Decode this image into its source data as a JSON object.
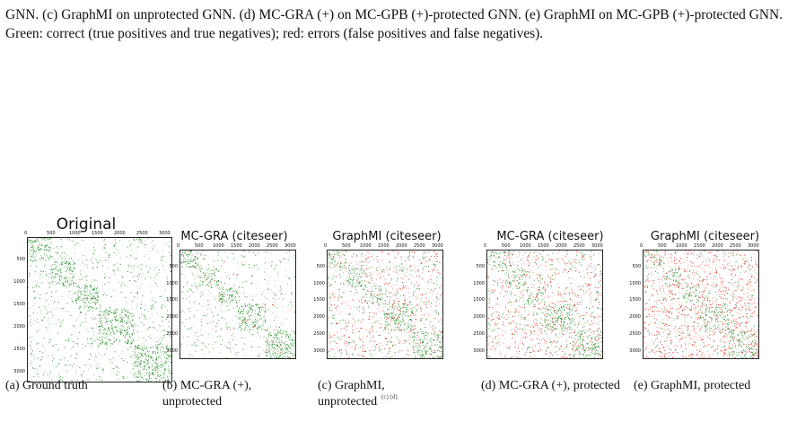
{
  "caption_top": "GNN. (c) GraphMI on unprotected GNN. (d) MC-GRA (+) on MC-GPB (+)-protected GNN. (e) GraphMI on MC-GPB (+)-protected GNN. Green: correct (true positives and true negatives); red: errors (false positives and false negatives).",
  "colors": {
    "correct": "#1e8a1e",
    "error": "#e8231b",
    "border": "#222222"
  },
  "xtick_labels": [
    "0",
    "500",
    "1000",
    "1500",
    "2000",
    "2500",
    "3000"
  ],
  "ytick_labels": [
    "500",
    "1000",
    "1500",
    "2000",
    "2500",
    "3000"
  ],
  "panels": [
    {
      "title": "Original",
      "subcaption": "(a) Ground truth",
      "error_level": 0.0,
      "noise_level": 0.25
    },
    {
      "title": "MC-GRA (citeseer)",
      "subcaption": "(b) MC-GRA (+), unprotected",
      "error_level": 0.15,
      "noise_level": 0.22
    },
    {
      "title": "GraphMI (citeseer)",
      "subcaption": "(c) GraphMI, unprotected",
      "error_level": 0.55,
      "noise_level": 0.5
    },
    {
      "title": "MC-GRA (citeseer)",
      "subcaption": "(d) MC-GRA (+), protected",
      "error_level": 0.6,
      "noise_level": 0.55
    },
    {
      "title": "GraphMI (citeseer)",
      "subcaption": "(e) GraphMI, protected",
      "error_level": 0.8,
      "noise_level": 0.62
    }
  ],
  "stray_mark": "(c) (d)"
}
